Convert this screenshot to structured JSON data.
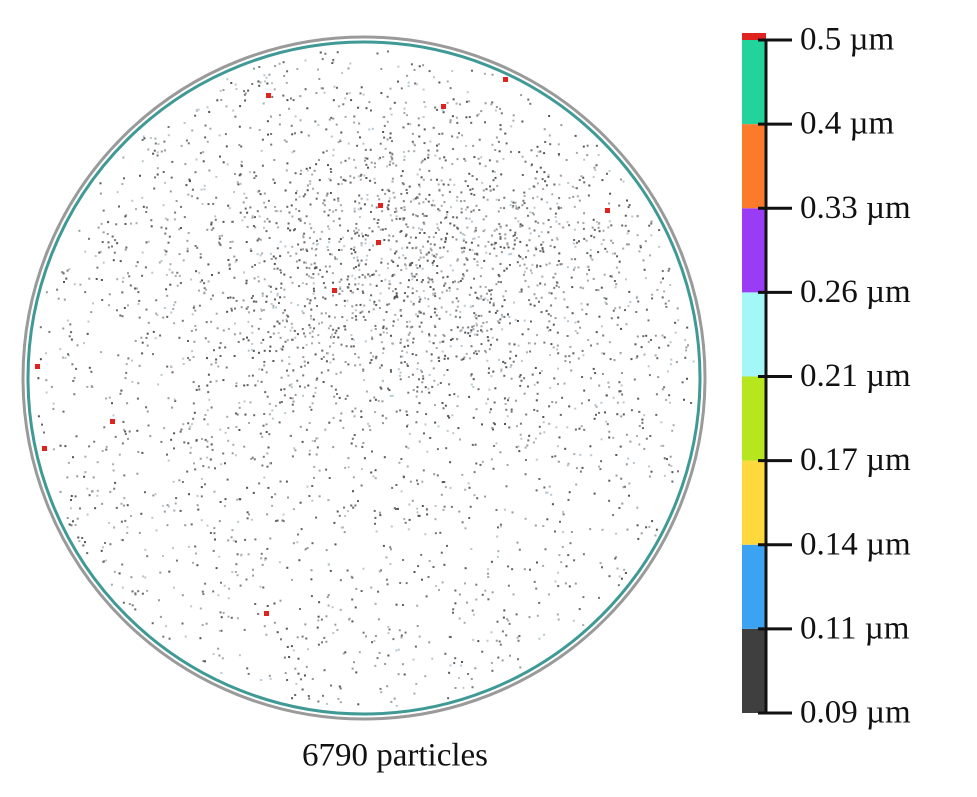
{
  "caption": "6790 particles",
  "colorbar": {
    "ticks": [
      {
        "value": 0.09,
        "label": "0.09 µm"
      },
      {
        "value": 0.11,
        "label": "0.11 µm"
      },
      {
        "value": 0.14,
        "label": "0.14 µm"
      },
      {
        "value": 0.17,
        "label": "0.17 µm"
      },
      {
        "value": 0.21,
        "label": "0.21 µm"
      },
      {
        "value": 0.26,
        "label": "0.26 µm"
      },
      {
        "value": 0.33,
        "label": "0.33 µm"
      },
      {
        "value": 0.4,
        "label": "0.4 µm"
      },
      {
        "value": 0.5,
        "label": "0.5 µm"
      }
    ],
    "colors": [
      "#3f3f3f",
      "#3ba3f2",
      "#ffd83d",
      "#b6e61e",
      "#a3f7f7",
      "#9a3cf5",
      "#fb7a2c",
      "#22d39c"
    ],
    "top_color": "#e0231e"
  }
}
